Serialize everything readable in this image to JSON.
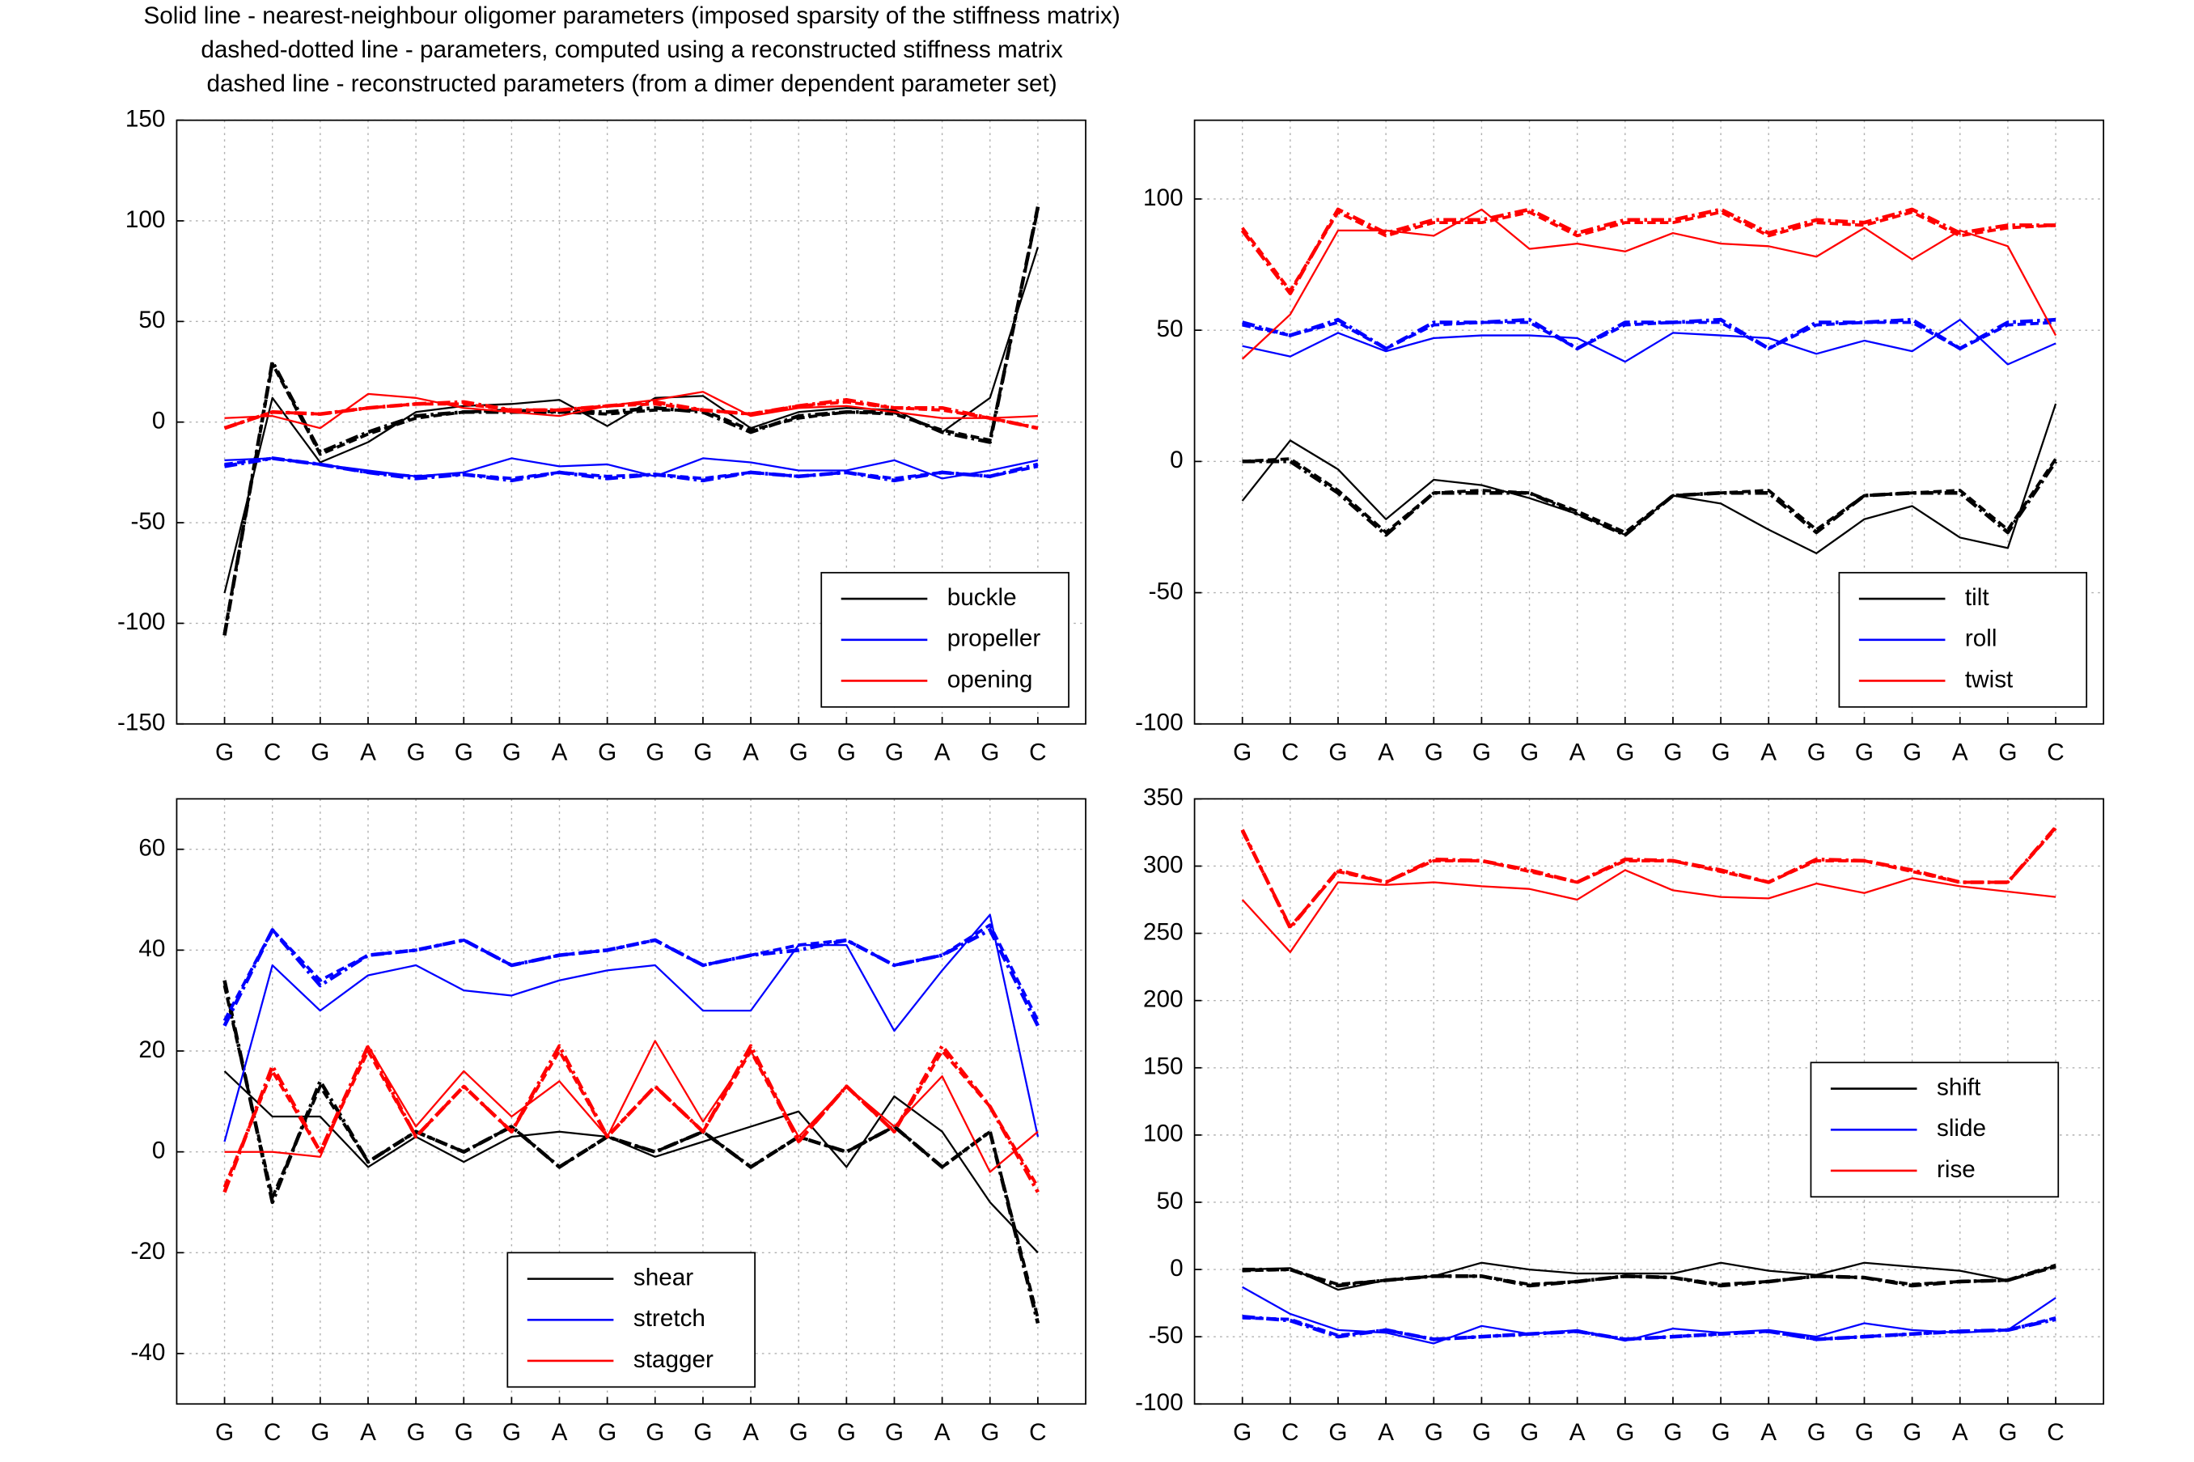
{
  "chart_data": [
    {
      "type": "line",
      "title": [
        "Solid line - nearest-neighbour oligomer parameters (imposed sparsity of the stiffness matrix)",
        "dashed-dotted line - parameters, computed using a reconstructed stiffness matrix",
        "dashed line - reconstructed parameters (from a dimer dependent parameter set)"
      ],
      "categories": [
        "G",
        "C",
        "G",
        "A",
        "G",
        "G",
        "G",
        "A",
        "G",
        "G",
        "G",
        "A",
        "G",
        "G",
        "G",
        "A",
        "G",
        "C"
      ],
      "ylim": [
        -150,
        150
      ],
      "yticks": [
        -150,
        -100,
        -50,
        0,
        50,
        100,
        150
      ],
      "grid": true,
      "legend": "lower right",
      "series": [
        {
          "name": "buckle",
          "color": "#000000",
          "values": [
            -85,
            12,
            -20,
            -10,
            5,
            8,
            9,
            11,
            -2,
            12,
            13,
            -3,
            5,
            7,
            6,
            -5,
            12,
            87
          ],
          "dashdot": [
            -106,
            30,
            -15,
            -5,
            3,
            5,
            5,
            5,
            5,
            7,
            5,
            -5,
            3,
            5,
            5,
            -5,
            -10,
            107
          ],
          "dashed": [
            -105,
            29,
            -16,
            -6,
            2,
            5,
            6,
            5,
            4,
            6,
            6,
            -4,
            2,
            5,
            4,
            -4,
            -9,
            106
          ]
        },
        {
          "name": "propeller",
          "color": "#0000ff",
          "values": [
            -19,
            -18,
            -21,
            -24,
            -27,
            -25,
            -18,
            -22,
            -21,
            -27,
            -18,
            -20,
            -24,
            -24,
            -19,
            -28,
            -24,
            -19
          ],
          "dashdot": [
            -22,
            -18,
            -21,
            -25,
            -28,
            -26,
            -29,
            -25,
            -28,
            -26,
            -29,
            -25,
            -27,
            -25,
            -29,
            -25,
            -27,
            -21
          ],
          "dashed": [
            -21,
            -18,
            -21,
            -25,
            -27,
            -26,
            -28,
            -25,
            -27,
            -26,
            -28,
            -25,
            -27,
            -25,
            -28,
            -25,
            -27,
            -22
          ]
        },
        {
          "name": "opening",
          "color": "#ff0000",
          "values": [
            2,
            3,
            -3,
            14,
            12,
            7,
            5,
            3,
            8,
            11,
            15,
            3,
            7,
            8,
            5,
            2,
            2,
            3
          ],
          "dashdot": [
            -3,
            5,
            4,
            7,
            9,
            10,
            6,
            6,
            8,
            10,
            6,
            4,
            8,
            11,
            7,
            7,
            2,
            -3
          ],
          "dashed": [
            -3,
            5,
            4,
            7,
            9,
            9,
            6,
            6,
            8,
            9,
            6,
            4,
            8,
            10,
            7,
            6,
            2,
            -3
          ]
        }
      ]
    },
    {
      "type": "line",
      "categories": [
        "G",
        "C",
        "G",
        "A",
        "G",
        "G",
        "G",
        "A",
        "G",
        "G",
        "G",
        "A",
        "G",
        "G",
        "G",
        "A",
        "G",
        "C"
      ],
      "ylim": [
        -100,
        130
      ],
      "yticks": [
        -100,
        -50,
        0,
        50,
        100
      ],
      "grid": true,
      "legend": "lower right",
      "series": [
        {
          "name": "tilt",
          "color": "#000000",
          "values": [
            -15,
            8,
            -3,
            -22,
            -7,
            -9,
            -14,
            -20,
            -28,
            -13,
            -16,
            -26,
            -35,
            -22,
            -17,
            -29,
            -33,
            22
          ],
          "dashdot": [
            0,
            0,
            -12,
            -28,
            -12,
            -12,
            -12,
            -20,
            -28,
            -13,
            -12,
            -12,
            -27,
            -13,
            -12,
            -12,
            -27,
            0
          ],
          "dashed": [
            0,
            1,
            -11,
            -27,
            -12,
            -11,
            -12,
            -19,
            -27,
            -13,
            -12,
            -11,
            -26,
            -13,
            -12,
            -11,
            -26,
            1
          ]
        },
        {
          "name": "roll",
          "color": "#0000ff",
          "values": [
            44,
            40,
            49,
            42,
            47,
            48,
            48,
            47,
            38,
            49,
            48,
            47,
            41,
            46,
            42,
            54,
            37,
            45
          ],
          "dashdot": [
            53,
            48,
            54,
            43,
            53,
            53,
            54,
            43,
            53,
            53,
            54,
            43,
            53,
            53,
            54,
            43,
            53,
            54
          ],
          "dashed": [
            52,
            48,
            53,
            43,
            52,
            53,
            53,
            43,
            52,
            53,
            53,
            43,
            52,
            53,
            53,
            43,
            52,
            53
          ]
        },
        {
          "name": "twist",
          "color": "#ff0000",
          "values": [
            39,
            56,
            88,
            88,
            86,
            96,
            81,
            83,
            80,
            87,
            83,
            82,
            78,
            89,
            77,
            88,
            82,
            48
          ],
          "dashdot": [
            88,
            64,
            96,
            87,
            92,
            92,
            96,
            87,
            92,
            92,
            96,
            87,
            92,
            91,
            96,
            87,
            90,
            90
          ],
          "dashed": [
            89,
            65,
            95,
            86,
            91,
            91,
            95,
            86,
            91,
            91,
            95,
            86,
            91,
            90,
            95,
            86,
            89,
            90
          ]
        }
      ]
    },
    {
      "type": "line",
      "categories": [
        "G",
        "C",
        "G",
        "A",
        "G",
        "G",
        "G",
        "A",
        "G",
        "G",
        "G",
        "A",
        "G",
        "G",
        "G",
        "A",
        "G",
        "C"
      ],
      "ylim": [
        -50,
        70
      ],
      "yticks": [
        -40,
        -20,
        0,
        20,
        40,
        60
      ],
      "grid": true,
      "legend": "lower center",
      "series": [
        {
          "name": "shear",
          "color": "#000000",
          "values": [
            16,
            7,
            7,
            -3,
            3,
            -2,
            3,
            4,
            3,
            -1,
            2,
            5,
            8,
            -3,
            11,
            4,
            -10,
            -20
          ],
          "dashdot": [
            34,
            -10,
            14,
            -2,
            4,
            0,
            5,
            -3,
            3,
            0,
            4,
            -3,
            3,
            0,
            5,
            -3,
            4,
            -34
          ],
          "dashed": [
            33,
            -9,
            13,
            -2,
            4,
            0,
            5,
            -3,
            3,
            0,
            4,
            -3,
            3,
            0,
            5,
            -3,
            4,
            -33
          ]
        },
        {
          "name": "stretch",
          "color": "#0000ff",
          "values": [
            2,
            37,
            28,
            35,
            37,
            32,
            31,
            34,
            36,
            37,
            28,
            28,
            41,
            41,
            24,
            36,
            47,
            3
          ],
          "dashdot": [
            25,
            44,
            33,
            39,
            40,
            42,
            37,
            39,
            40,
            42,
            37,
            39,
            40,
            42,
            37,
            39,
            44,
            25
          ],
          "dashed": [
            26,
            44,
            34,
            39,
            40,
            42,
            37,
            39,
            40,
            42,
            37,
            39,
            41,
            42,
            37,
            39,
            45,
            26
          ]
        },
        {
          "name": "stagger",
          "color": "#ff0000",
          "values": [
            0,
            0,
            -1,
            21,
            5,
            16,
            7,
            14,
            3,
            22,
            6,
            20,
            3,
            13,
            5,
            15,
            -4,
            4
          ],
          "dashdot": [
            -8,
            17,
            0,
            21,
            3,
            13,
            4,
            21,
            3,
            13,
            4,
            21,
            2,
            13,
            4,
            21,
            9,
            -8
          ],
          "dashed": [
            -7,
            16,
            0,
            20,
            3,
            13,
            4,
            20,
            3,
            13,
            4,
            20,
            2,
            13,
            4,
            20,
            9,
            -7
          ]
        }
      ]
    },
    {
      "type": "line",
      "categories": [
        "G",
        "C",
        "G",
        "A",
        "G",
        "G",
        "G",
        "A",
        "G",
        "G",
        "G",
        "A",
        "G",
        "G",
        "G",
        "A",
        "G",
        "C"
      ],
      "ylim": [
        -100,
        350
      ],
      "yticks": [
        -100,
        -50,
        0,
        50,
        100,
        150,
        200,
        250,
        300,
        350
      ],
      "grid": true,
      "legend": "center right",
      "series": [
        {
          "name": "shift",
          "color": "#000000",
          "values": [
            0,
            1,
            -15,
            -8,
            -5,
            5,
            0,
            -3,
            -3,
            -3,
            5,
            -1,
            -4,
            5,
            2,
            -1,
            -8,
            3
          ],
          "dashdot": [
            0,
            0,
            -12,
            -8,
            -5,
            -5,
            -12,
            -9,
            -5,
            -6,
            -12,
            -9,
            -5,
            -6,
            -12,
            -9,
            -8,
            3
          ],
          "dashed": [
            -1,
            0,
            -11,
            -8,
            -5,
            -5,
            -11,
            -9,
            -5,
            -6,
            -11,
            -9,
            -5,
            -6,
            -11,
            -9,
            -8,
            2
          ]
        },
        {
          "name": "slide",
          "color": "#0000ff",
          "values": [
            -13,
            -33,
            -45,
            -47,
            -55,
            -42,
            -48,
            -45,
            -53,
            -44,
            -47,
            -45,
            -50,
            -40,
            -45,
            -47,
            -45,
            -21
          ],
          "dashdot": [
            -35,
            -38,
            -50,
            -45,
            -52,
            -50,
            -48,
            -46,
            -52,
            -50,
            -48,
            -46,
            -52,
            -50,
            -48,
            -46,
            -45,
            -37
          ],
          "dashed": [
            -36,
            -37,
            -49,
            -45,
            -52,
            -50,
            -48,
            -46,
            -52,
            -50,
            -48,
            -46,
            -52,
            -50,
            -48,
            -46,
            -45,
            -36
          ]
        },
        {
          "name": "rise",
          "color": "#ff0000",
          "values": [
            275,
            236,
            288,
            286,
            288,
            285,
            283,
            275,
            297,
            282,
            277,
            276,
            287,
            280,
            291,
            285,
            281,
            277
          ],
          "dashdot": [
            327,
            254,
            297,
            288,
            305,
            304,
            297,
            288,
            305,
            304,
            297,
            288,
            305,
            304,
            297,
            288,
            288,
            329
          ],
          "dashed": [
            326,
            255,
            296,
            288,
            304,
            304,
            296,
            288,
            304,
            304,
            296,
            288,
            304,
            304,
            296,
            288,
            288,
            328
          ]
        }
      ]
    }
  ]
}
